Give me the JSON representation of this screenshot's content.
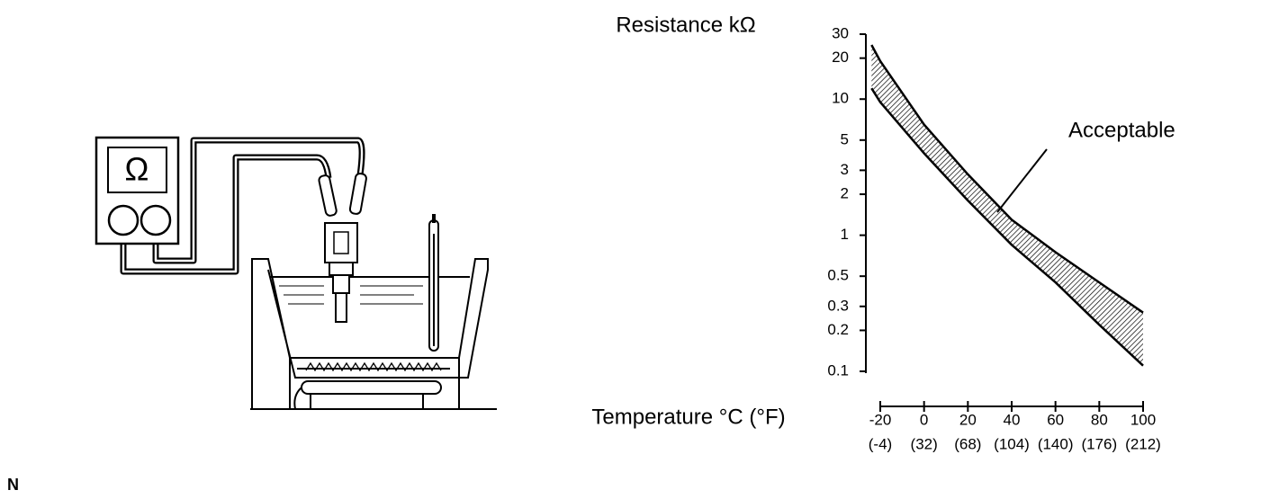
{
  "diagram": {
    "meter_symbol": "Ω",
    "corner_mark": "N"
  },
  "chart_data": {
    "type": "band",
    "y_label": "Resistance kΩ",
    "x_label": "Temperature °C (°F)",
    "annotation": "Acceptable",
    "log_y": true,
    "x": [
      -24,
      -20,
      0,
      20,
      40,
      60,
      80,
      100
    ],
    "upper": [
      25,
      19,
      6.5,
      2.8,
      1.3,
      0.75,
      0.45,
      0.27
    ],
    "lower": [
      12,
      9.5,
      4,
      1.8,
      0.85,
      0.45,
      0.22,
      0.11
    ],
    "color": "#000000",
    "xlim": [
      -20,
      100
    ],
    "xticks": [
      -20,
      0,
      20,
      40,
      60,
      80,
      100
    ],
    "xtick_labels_f": [
      "(-4)",
      "(32)",
      "(68)",
      "(104)",
      "(140)",
      "(176)",
      "(212)"
    ],
    "ylim": [
      0.1,
      30
    ],
    "yticks": [
      30,
      20,
      10,
      5,
      3,
      2,
      1,
      0.5,
      0.3,
      0.2,
      0.1
    ]
  }
}
